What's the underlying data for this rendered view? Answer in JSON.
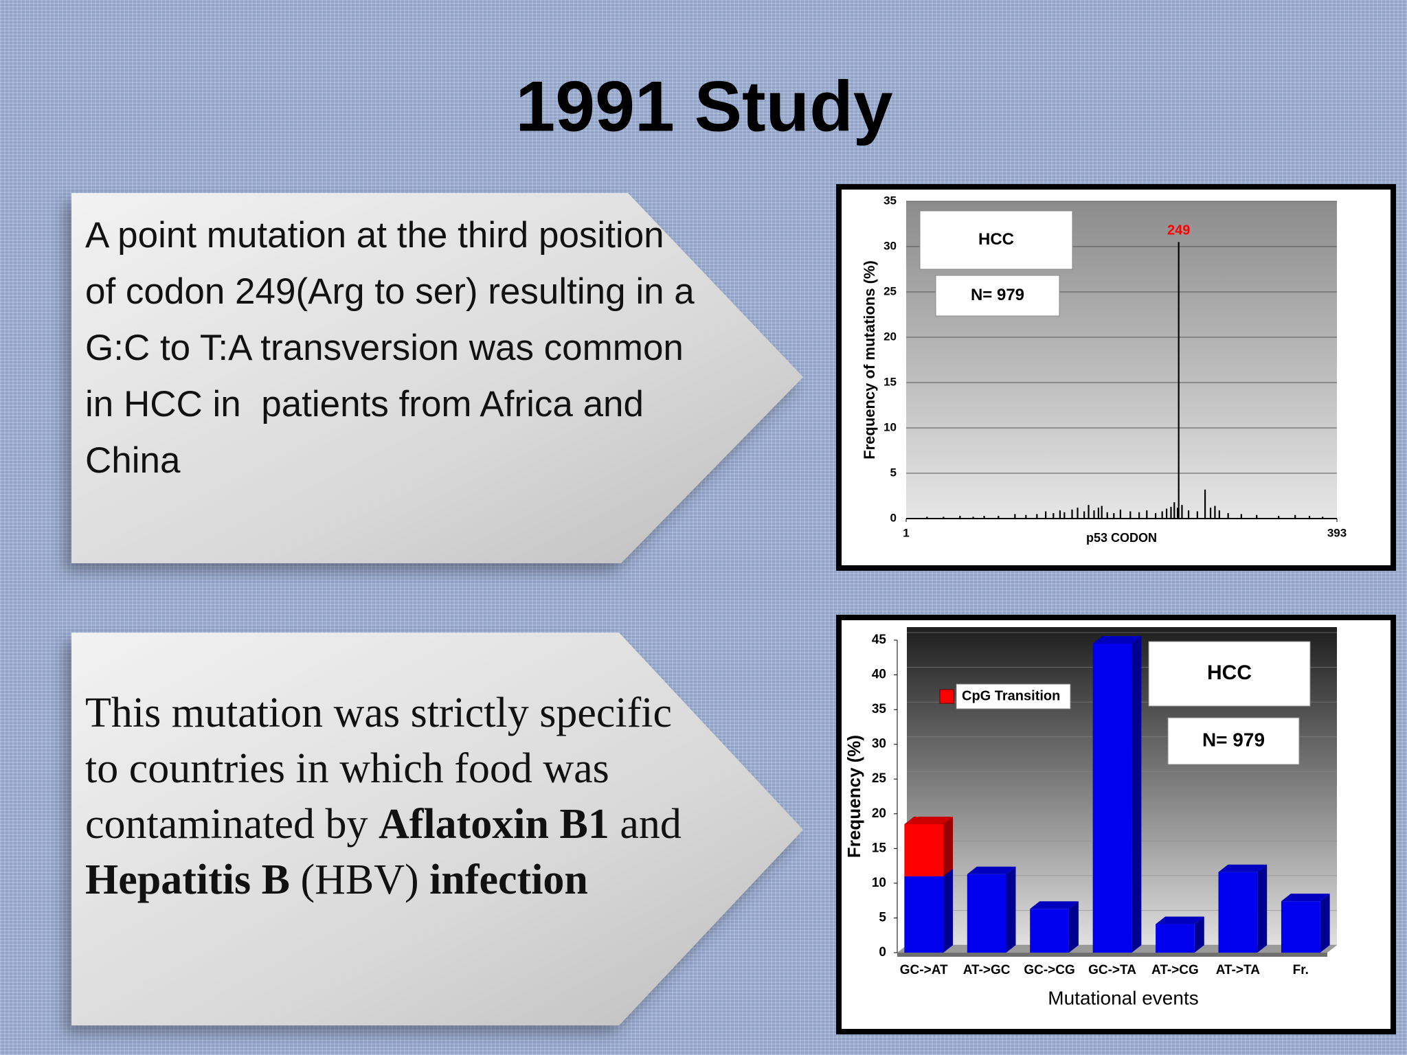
{
  "title": "1991 Study",
  "panels": [
    {
      "text": "A point mutation at the third position of codon 249(Arg to ser) resulting in a G:C to T:A transversion was common in HCC in  patients from Africa and China"
    },
    {
      "runs": [
        {
          "text": "This mutation was strictly specific to countries in which food was contaminated by ",
          "bold": false
        },
        {
          "text": "Aflatoxin B1",
          "bold": true
        },
        {
          "text": " and ",
          "bold": false
        },
        {
          "text": "Hepatitis B",
          "bold": true
        },
        {
          "text": " (HBV) ",
          "bold": false
        },
        {
          "text": "infection",
          "bold": true
        }
      ]
    }
  ],
  "chart_data": [
    {
      "type": "spike",
      "xlabel": "p53 CODON",
      "ylabel": "Frequency of mutations (%)",
      "x": [
        20,
        35,
        50,
        62,
        72,
        85,
        100,
        110,
        120,
        128,
        135,
        141,
        145,
        152,
        157,
        163,
        167,
        172,
        176,
        179,
        184,
        190,
        196,
        205,
        213,
        220,
        228,
        234,
        238,
        242,
        245,
        248,
        249,
        252,
        258,
        266,
        273,
        278,
        282,
        286,
        294,
        306,
        320,
        340,
        355,
        368,
        380
      ],
      "values": [
        0.2,
        0.2,
        0.3,
        0.2,
        0.3,
        0.3,
        0.5,
        0.4,
        0.5,
        0.8,
        0.6,
        0.9,
        0.7,
        1.0,
        1.2,
        0.8,
        1.5,
        0.9,
        1.2,
        1.4,
        0.7,
        0.6,
        1.0,
        0.8,
        0.7,
        0.9,
        0.6,
        0.8,
        1.1,
        1.3,
        1.8,
        1.2,
        30.5,
        1.5,
        0.9,
        0.8,
        3.2,
        1.2,
        1.4,
        0.9,
        0.6,
        0.5,
        0.4,
        0.3,
        0.4,
        0.3,
        0.2
      ],
      "color": "#000000",
      "xlim": [
        1,
        393
      ],
      "xticks": [
        1,
        393
      ],
      "ylim": [
        0,
        35
      ],
      "yticks": [
        0,
        5,
        10,
        15,
        20,
        25,
        30,
        35
      ],
      "grid": true,
      "annotations": [
        {
          "text": "HCC"
        },
        {
          "text": "N= 979"
        },
        {
          "text": "249",
          "x": 249,
          "color": "#ff0000"
        }
      ]
    },
    {
      "type": "bar",
      "stacked": true,
      "xlabel": "Mutational events",
      "ylabel": "Frequency (%)",
      "categories": [
        "GC->AT",
        "AT->GC",
        "GC->CG",
        "GC->TA",
        "AT->CG",
        "AT->TA",
        "Fr."
      ],
      "series": [
        {
          "color": "#0000ee",
          "values": [
            11,
            11.3,
            6.3,
            44.5,
            4.1,
            11.6,
            7.4
          ]
        },
        {
          "name": "CpG Transition",
          "color": "#ff0000",
          "values": [
            7.5,
            null,
            null,
            null,
            null,
            null,
            null
          ]
        }
      ],
      "ylim": [
        0,
        45
      ],
      "yticks": [
        0,
        5,
        10,
        15,
        20,
        25,
        30,
        35,
        40,
        45
      ],
      "grid": true,
      "legend": "upper left",
      "annotations": [
        {
          "text": "HCC"
        },
        {
          "text": "N= 979"
        }
      ]
    }
  ]
}
